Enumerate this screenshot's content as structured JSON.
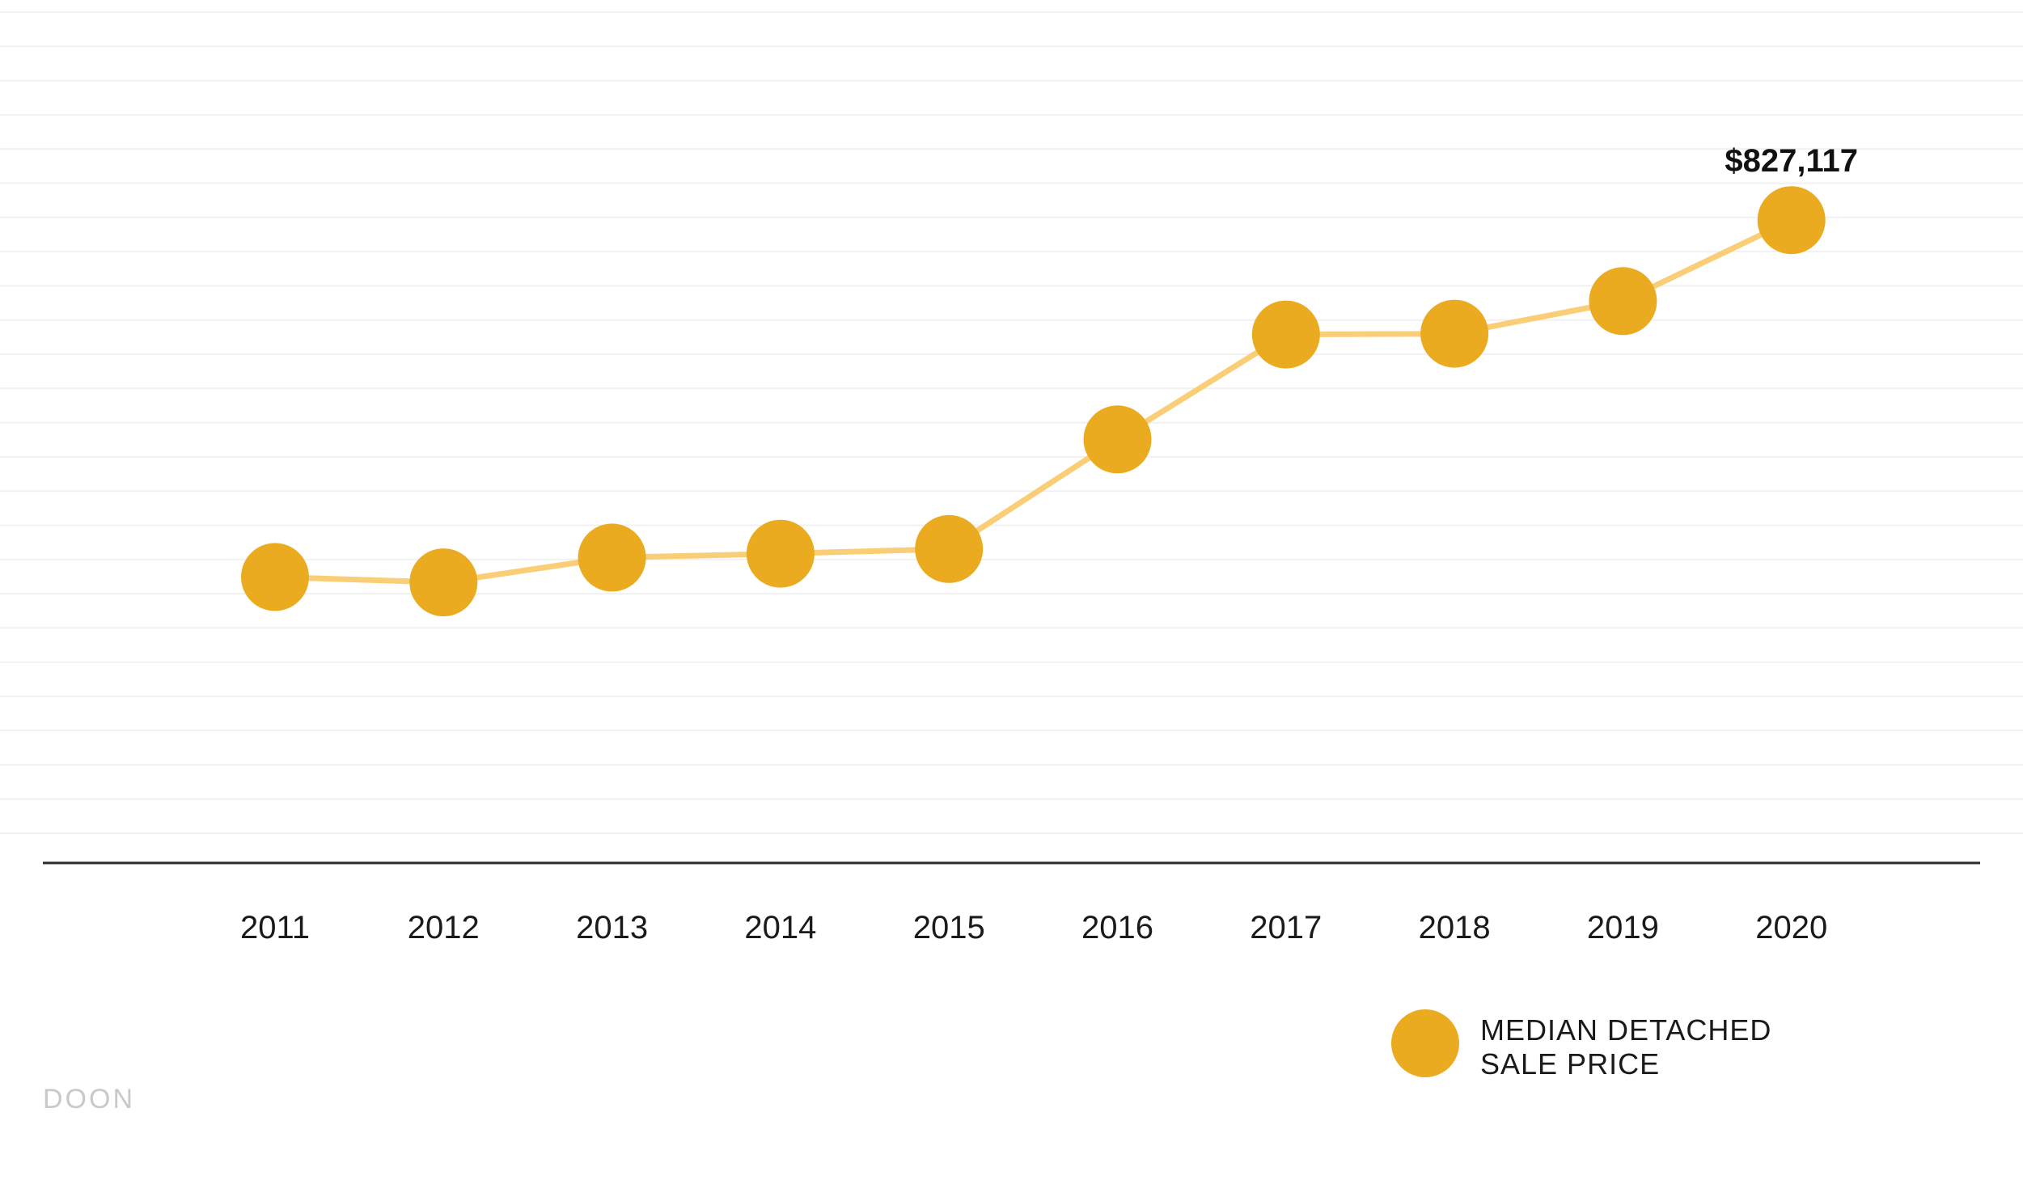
{
  "watermark": "DOON",
  "legend": {
    "line1": "MEDIAN DETACHED",
    "line2": "SALE PRICE"
  },
  "colors": {
    "marker": "#EBAB20",
    "line": "#F9CE76",
    "axis": "#2b2b2b",
    "grid": "#f1f1f1"
  },
  "chart_data": {
    "type": "line",
    "categories": [
      "2011",
      "2012",
      "2013",
      "2014",
      "2015",
      "2016",
      "2017",
      "2018",
      "2019",
      "2020"
    ],
    "series": [
      {
        "name": "MEDIAN DETACHED SALE PRICE",
        "values": [
          368000,
          361000,
          393000,
          398000,
          404000,
          545000,
          680000,
          681000,
          723000,
          827117
        ]
      }
    ],
    "data_labels": [
      {
        "index": 9,
        "text": "$827,117"
      }
    ],
    "ylim": [
      0,
      1100000
    ],
    "grid": true,
    "legend_position": "bottom-right",
    "title": "",
    "xlabel": "",
    "ylabel": ""
  }
}
